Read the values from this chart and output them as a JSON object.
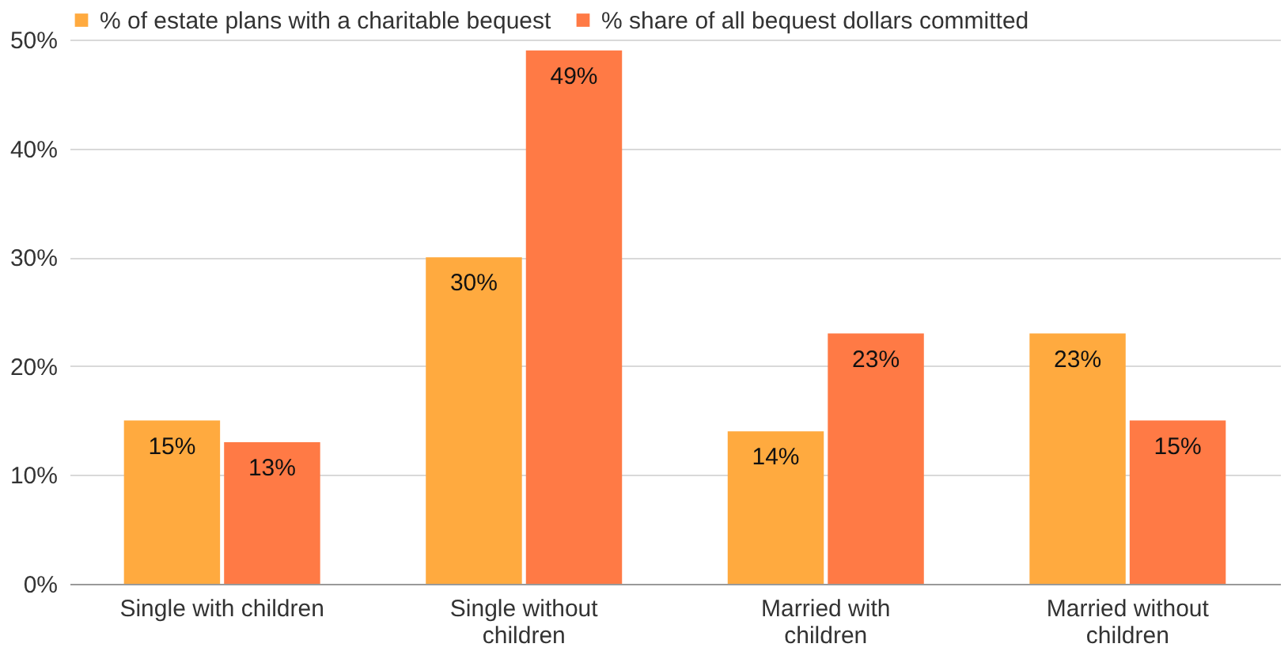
{
  "chart_data": {
    "type": "bar",
    "categories": [
      "Single with children",
      "Single without children",
      "Married with children",
      "Married without children"
    ],
    "series": [
      {
        "name": "% of estate plans with a charitable bequest",
        "color": "#ffaa3f",
        "values": [
          15,
          30,
          14,
          23
        ],
        "value_labels": [
          "15%",
          "30%",
          "14%",
          "23%"
        ]
      },
      {
        "name": "% share of all bequest dollars committed",
        "color": "#ff7a45",
        "values": [
          13,
          49,
          23,
          15
        ],
        "value_labels": [
          "13%",
          "49%",
          "23%",
          "15%"
        ]
      }
    ],
    "ylim": [
      0,
      50
    ],
    "yticks": [
      {
        "value": 0,
        "label": "0%"
      },
      {
        "value": 10,
        "label": "10%"
      },
      {
        "value": 20,
        "label": "20%"
      },
      {
        "value": 30,
        "label": "30%"
      },
      {
        "value": 40,
        "label": "40%"
      },
      {
        "value": 50,
        "label": "50%"
      }
    ],
    "grid": "y",
    "legend": "top left"
  }
}
